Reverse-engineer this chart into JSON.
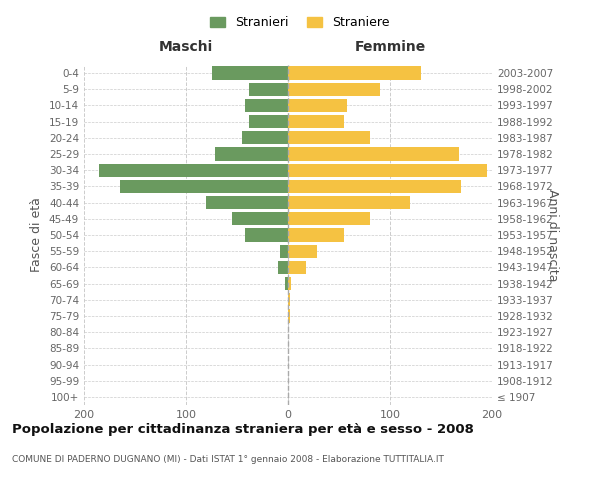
{
  "age_groups": [
    "100+",
    "95-99",
    "90-94",
    "85-89",
    "80-84",
    "75-79",
    "70-74",
    "65-69",
    "60-64",
    "55-59",
    "50-54",
    "45-49",
    "40-44",
    "35-39",
    "30-34",
    "25-29",
    "20-24",
    "15-19",
    "10-14",
    "5-9",
    "0-4"
  ],
  "birth_years": [
    "≤ 1907",
    "1908-1912",
    "1913-1917",
    "1918-1922",
    "1923-1927",
    "1928-1932",
    "1933-1937",
    "1938-1942",
    "1943-1947",
    "1948-1952",
    "1953-1957",
    "1958-1962",
    "1963-1967",
    "1968-1972",
    "1973-1977",
    "1978-1982",
    "1983-1987",
    "1988-1992",
    "1993-1997",
    "1998-2002",
    "2003-2007"
  ],
  "maschi": [
    0,
    0,
    0,
    0,
    0,
    0,
    0,
    3,
    10,
    8,
    42,
    55,
    80,
    165,
    185,
    72,
    45,
    38,
    42,
    38,
    75
  ],
  "femmine": [
    0,
    0,
    0,
    0,
    0,
    2,
    2,
    3,
    18,
    28,
    55,
    80,
    120,
    170,
    195,
    168,
    80,
    55,
    58,
    90,
    130
  ],
  "color_maschi": "#6a9a5f",
  "color_femmine": "#f5c242",
  "title": "Popolazione per cittadinanza straniera per età e sesso - 2008",
  "subtitle": "COMUNE DI PADERNO DUGNANO (MI) - Dati ISTAT 1° gennaio 2008 - Elaborazione TUTTITALIA.IT",
  "header_left": "Maschi",
  "header_right": "Femmine",
  "ylabel_left": "Fasce di età",
  "ylabel_right": "Anni di nascita",
  "legend_maschi": "Stranieri",
  "legend_femmine": "Straniere",
  "xlim": 200,
  "background_color": "#ffffff",
  "grid_color": "#cccccc",
  "bar_height": 0.82
}
